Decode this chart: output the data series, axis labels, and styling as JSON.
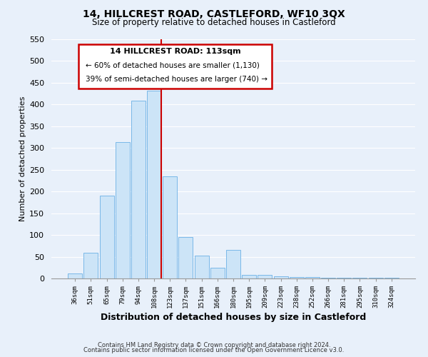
{
  "title": "14, HILLCREST ROAD, CASTLEFORD, WF10 3QX",
  "subtitle": "Size of property relative to detached houses in Castleford",
  "xlabel": "Distribution of detached houses by size in Castleford",
  "ylabel": "Number of detached properties",
  "bar_labels": [
    "36sqm",
    "51sqm",
    "65sqm",
    "79sqm",
    "94sqm",
    "108sqm",
    "123sqm",
    "137sqm",
    "151sqm",
    "166sqm",
    "180sqm",
    "195sqm",
    "209sqm",
    "223sqm",
    "238sqm",
    "252sqm",
    "266sqm",
    "281sqm",
    "295sqm",
    "310sqm",
    "324sqm"
  ],
  "bar_values": [
    12,
    59,
    190,
    314,
    408,
    432,
    235,
    95,
    52,
    25,
    65,
    8,
    8,
    5,
    3,
    3,
    2,
    2,
    1,
    1,
    1
  ],
  "bar_color": "#cce4f7",
  "bar_edge_color": "#7ab8e8",
  "marker_index": 5,
  "marker_color": "#cc0000",
  "ylim": [
    0,
    550
  ],
  "yticks": [
    0,
    50,
    100,
    150,
    200,
    250,
    300,
    350,
    400,
    450,
    500,
    550
  ],
  "annotation_title": "14 HILLCREST ROAD: 113sqm",
  "annotation_line1": "← 60% of detached houses are smaller (1,130)",
  "annotation_line2": "39% of semi-detached houses are larger (740) →",
  "footer_line1": "Contains HM Land Registry data © Crown copyright and database right 2024.",
  "footer_line2": "Contains public sector information licensed under the Open Government Licence v3.0.",
  "background_color": "#e8f0fa",
  "plot_background": "#e8f0fa",
  "grid_color": "#ffffff",
  "title_fontsize": 10,
  "subtitle_fontsize": 9
}
